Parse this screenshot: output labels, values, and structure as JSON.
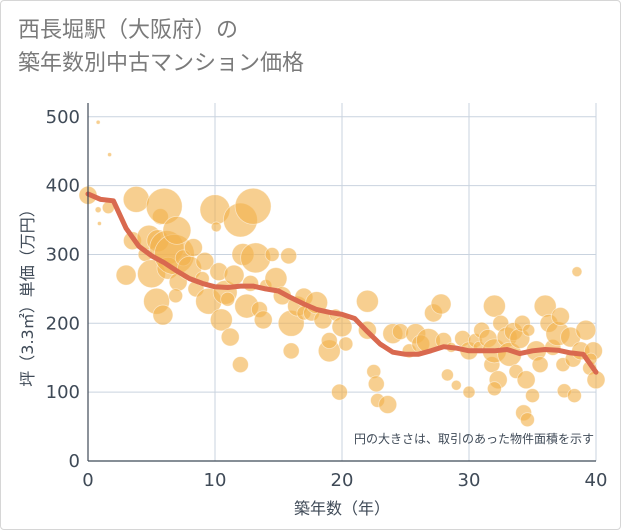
{
  "title": {
    "line1": "西長堀駅（大阪府）の",
    "line2": "築年数別中古マンション価格"
  },
  "chart_data": {
    "type": "scatter",
    "xlabel": "築年数（年）",
    "ylabel": "坪（3.3㎡）単価（万円）",
    "xlim": [
      0,
      40
    ],
    "ylim": [
      0,
      520
    ],
    "xticks": [
      "0",
      "10",
      "20",
      "30",
      "40"
    ],
    "yticks": [
      "0",
      "100",
      "200",
      "300",
      "400",
      "500"
    ],
    "grid": true,
    "note": "円の大きさは、取引のあった物件面積を示す",
    "colors": {
      "bubble": "#f2b24c",
      "line": "#d9694f",
      "grid": "#c9d3df"
    },
    "trend": {
      "x": [
        0,
        1,
        2,
        3,
        4,
        5,
        6,
        7,
        8,
        9,
        10,
        11,
        12,
        13,
        14,
        15,
        16,
        17,
        18,
        19,
        20,
        21,
        22,
        23,
        24,
        25,
        26,
        27,
        28,
        29,
        30,
        31,
        32,
        33,
        34,
        35,
        36,
        37,
        38,
        39,
        40
      ],
      "y": [
        388,
        380,
        378,
        338,
        312,
        298,
        288,
        276,
        265,
        258,
        253,
        252,
        254,
        254,
        250,
        247,
        237,
        228,
        220,
        216,
        213,
        207,
        188,
        170,
        158,
        155,
        155,
        160,
        166,
        164,
        160,
        160,
        160,
        162,
        156,
        160,
        162,
        161,
        157,
        155,
        129
      ]
    },
    "points": [
      {
        "x": 0,
        "y": 386,
        "r": 9
      },
      {
        "x": 0.8,
        "y": 492,
        "r": 2
      },
      {
        "x": 1.7,
        "y": 445,
        "r": 2
      },
      {
        "x": 0.8,
        "y": 365,
        "r": 3
      },
      {
        "x": 1.6,
        "y": 368,
        "r": 6
      },
      {
        "x": 0.9,
        "y": 345,
        "r": 2
      },
      {
        "x": 3.8,
        "y": 380,
        "r": 13
      },
      {
        "x": 3.5,
        "y": 320,
        "r": 9
      },
      {
        "x": 3,
        "y": 270,
        "r": 10
      },
      {
        "x": 4.5,
        "y": 300,
        "r": 7
      },
      {
        "x": 4.8,
        "y": 325,
        "r": 12
      },
      {
        "x": 5,
        "y": 272,
        "r": 14
      },
      {
        "x": 5.5,
        "y": 320,
        "r": 11
      },
      {
        "x": 5.7,
        "y": 355,
        "r": 8
      },
      {
        "x": 6,
        "y": 370,
        "r": 18
      },
      {
        "x": 6.2,
        "y": 310,
        "r": 17
      },
      {
        "x": 6.3,
        "y": 280,
        "r": 11
      },
      {
        "x": 5.4,
        "y": 232,
        "r": 13
      },
      {
        "x": 5.9,
        "y": 212,
        "r": 10
      },
      {
        "x": 6.8,
        "y": 300,
        "r": 20
      },
      {
        "x": 7,
        "y": 335,
        "r": 14
      },
      {
        "x": 7.1,
        "y": 260,
        "r": 9
      },
      {
        "x": 7.5,
        "y": 295,
        "r": 8
      },
      {
        "x": 6.9,
        "y": 240,
        "r": 7
      },
      {
        "x": 8,
        "y": 280,
        "r": 12
      },
      {
        "x": 8.3,
        "y": 310,
        "r": 9
      },
      {
        "x": 8.5,
        "y": 250,
        "r": 8
      },
      {
        "x": 9,
        "y": 265,
        "r": 7
      },
      {
        "x": 9.2,
        "y": 290,
        "r": 9
      },
      {
        "x": 9.5,
        "y": 232,
        "r": 13
      },
      {
        "x": 10,
        "y": 365,
        "r": 15
      },
      {
        "x": 10.1,
        "y": 340,
        "r": 5
      },
      {
        "x": 10.3,
        "y": 275,
        "r": 9
      },
      {
        "x": 10.5,
        "y": 205,
        "r": 11
      },
      {
        "x": 10.8,
        "y": 245,
        "r": 12
      },
      {
        "x": 11.2,
        "y": 180,
        "r": 9
      },
      {
        "x": 11,
        "y": 235,
        "r": 7
      },
      {
        "x": 11.5,
        "y": 270,
        "r": 10
      },
      {
        "x": 12,
        "y": 350,
        "r": 17
      },
      {
        "x": 12.2,
        "y": 300,
        "r": 11
      },
      {
        "x": 12,
        "y": 140,
        "r": 8
      },
      {
        "x": 12.5,
        "y": 225,
        "r": 12
      },
      {
        "x": 12.8,
        "y": 258,
        "r": 8
      },
      {
        "x": 13,
        "y": 370,
        "r": 18
      },
      {
        "x": 13.2,
        "y": 295,
        "r": 15
      },
      {
        "x": 13.5,
        "y": 220,
        "r": 8
      },
      {
        "x": 13.8,
        "y": 205,
        "r": 9
      },
      {
        "x": 14,
        "y": 255,
        "r": 6
      },
      {
        "x": 14.5,
        "y": 300,
        "r": 7
      },
      {
        "x": 14.8,
        "y": 265,
        "r": 11
      },
      {
        "x": 15.3,
        "y": 240,
        "r": 9
      },
      {
        "x": 15.8,
        "y": 298,
        "r": 8
      },
      {
        "x": 16,
        "y": 200,
        "r": 13
      },
      {
        "x": 16,
        "y": 160,
        "r": 8
      },
      {
        "x": 16.5,
        "y": 225,
        "r": 10
      },
      {
        "x": 17,
        "y": 238,
        "r": 9
      },
      {
        "x": 17,
        "y": 215,
        "r": 7
      },
      {
        "x": 17.6,
        "y": 215,
        "r": 8
      },
      {
        "x": 18,
        "y": 230,
        "r": 11
      },
      {
        "x": 18.5,
        "y": 205,
        "r": 9
      },
      {
        "x": 19,
        "y": 160,
        "r": 11
      },
      {
        "x": 19,
        "y": 175,
        "r": 8
      },
      {
        "x": 19.5,
        "y": 212,
        "r": 6
      },
      {
        "x": 20,
        "y": 195,
        "r": 10
      },
      {
        "x": 19.8,
        "y": 100,
        "r": 8
      },
      {
        "x": 20.3,
        "y": 170,
        "r": 7
      },
      {
        "x": 22,
        "y": 232,
        "r": 11
      },
      {
        "x": 22,
        "y": 190,
        "r": 9
      },
      {
        "x": 22.5,
        "y": 130,
        "r": 7
      },
      {
        "x": 22.7,
        "y": 112,
        "r": 8
      },
      {
        "x": 22.8,
        "y": 88,
        "r": 7
      },
      {
        "x": 23.6,
        "y": 82,
        "r": 9
      },
      {
        "x": 24,
        "y": 185,
        "r": 10
      },
      {
        "x": 24.6,
        "y": 188,
        "r": 8
      },
      {
        "x": 25.3,
        "y": 160,
        "r": 7
      },
      {
        "x": 25.8,
        "y": 185,
        "r": 10
      },
      {
        "x": 26.2,
        "y": 170,
        "r": 9
      },
      {
        "x": 26.8,
        "y": 175,
        "r": 12
      },
      {
        "x": 27.2,
        "y": 215,
        "r": 9
      },
      {
        "x": 27.8,
        "y": 228,
        "r": 10
      },
      {
        "x": 28,
        "y": 175,
        "r": 8
      },
      {
        "x": 28.3,
        "y": 125,
        "r": 6
      },
      {
        "x": 28.6,
        "y": 165,
        "r": 5
      },
      {
        "x": 29,
        "y": 110,
        "r": 5
      },
      {
        "x": 29.5,
        "y": 178,
        "r": 8
      },
      {
        "x": 30,
        "y": 160,
        "r": 9
      },
      {
        "x": 30,
        "y": 100,
        "r": 6
      },
      {
        "x": 30.5,
        "y": 175,
        "r": 7
      },
      {
        "x": 30.8,
        "y": 165,
        "r": 6
      },
      {
        "x": 31,
        "y": 190,
        "r": 8
      },
      {
        "x": 31.5,
        "y": 178,
        "r": 9
      },
      {
        "x": 31.8,
        "y": 140,
        "r": 8
      },
      {
        "x": 32,
        "y": 225,
        "r": 11
      },
      {
        "x": 32,
        "y": 160,
        "r": 12
      },
      {
        "x": 32.3,
        "y": 118,
        "r": 9
      },
      {
        "x": 32,
        "y": 105,
        "r": 7
      },
      {
        "x": 32.5,
        "y": 200,
        "r": 8
      },
      {
        "x": 33,
        "y": 180,
        "r": 10
      },
      {
        "x": 33.2,
        "y": 155,
        "r": 12
      },
      {
        "x": 33.5,
        "y": 188,
        "r": 9
      },
      {
        "x": 33.7,
        "y": 130,
        "r": 7
      },
      {
        "x": 34,
        "y": 178,
        "r": 10
      },
      {
        "x": 34.2,
        "y": 200,
        "r": 8
      },
      {
        "x": 34.5,
        "y": 118,
        "r": 9
      },
      {
        "x": 34.7,
        "y": 190,
        "r": 6
      },
      {
        "x": 34.3,
        "y": 70,
        "r": 8
      },
      {
        "x": 34.6,
        "y": 60,
        "r": 7
      },
      {
        "x": 35,
        "y": 95,
        "r": 7
      },
      {
        "x": 35.3,
        "y": 160,
        "r": 10
      },
      {
        "x": 35.6,
        "y": 140,
        "r": 8
      },
      {
        "x": 36,
        "y": 225,
        "r": 11
      },
      {
        "x": 36.3,
        "y": 200,
        "r": 9
      },
      {
        "x": 36.6,
        "y": 165,
        "r": 8
      },
      {
        "x": 37,
        "y": 185,
        "r": 12
      },
      {
        "x": 37.2,
        "y": 210,
        "r": 9
      },
      {
        "x": 37.4,
        "y": 140,
        "r": 7
      },
      {
        "x": 37.5,
        "y": 102,
        "r": 7
      },
      {
        "x": 38,
        "y": 180,
        "r": 10
      },
      {
        "x": 38.2,
        "y": 148,
        "r": 8
      },
      {
        "x": 38.5,
        "y": 275,
        "r": 5
      },
      {
        "x": 38.3,
        "y": 95,
        "r": 7
      },
      {
        "x": 38.8,
        "y": 160,
        "r": 9
      },
      {
        "x": 39.2,
        "y": 190,
        "r": 10
      },
      {
        "x": 39.5,
        "y": 135,
        "r": 7
      },
      {
        "x": 39.8,
        "y": 160,
        "r": 9
      },
      {
        "x": 40,
        "y": 118,
        "r": 9
      },
      {
        "x": 39.6,
        "y": 148,
        "r": 6
      }
    ]
  }
}
